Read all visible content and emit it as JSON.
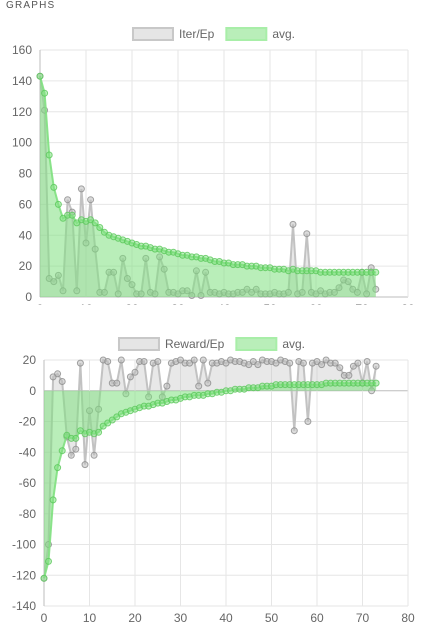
{
  "header": {
    "title": "GRAPHS"
  },
  "chart_data": [
    {
      "type": "line",
      "x": [
        0,
        1,
        2,
        3,
        4,
        5,
        6,
        7,
        8,
        9,
        10,
        11,
        12,
        13,
        14,
        15,
        16,
        17,
        18,
        19,
        20,
        21,
        22,
        23,
        24,
        25,
        26,
        27,
        28,
        29,
        30,
        31,
        32,
        33,
        34,
        35,
        36,
        37,
        38,
        39,
        40,
        41,
        42,
        43,
        44,
        45,
        46,
        47,
        48,
        49,
        50,
        51,
        52,
        53,
        54,
        55,
        56,
        57,
        58,
        59,
        60,
        61,
        62,
        63,
        64,
        65,
        66,
        67,
        68,
        69,
        70,
        71,
        72,
        73
      ],
      "series": [
        {
          "name": "Iter/Ep",
          "color": "#bdbdbd",
          "values": [
            143,
            121,
            12,
            10,
            14,
            4,
            63,
            55,
            4,
            70,
            35,
            63,
            31,
            3,
            3,
            16,
            16,
            2,
            25,
            12,
            8,
            2,
            2,
            25,
            3,
            2,
            26,
            18,
            3,
            3,
            2,
            4,
            4,
            1,
            17,
            1,
            16,
            3,
            3,
            2,
            3,
            2,
            2,
            3,
            3,
            5,
            3,
            5,
            2,
            2,
            2,
            3,
            2,
            2,
            3,
            47,
            2,
            3,
            41,
            3,
            2,
            4,
            2,
            3,
            3,
            6,
            11,
            10,
            5,
            3,
            16,
            2,
            19,
            5
          ]
        },
        {
          "name": "avg.",
          "color": "#7fe07f",
          "values": [
            143,
            132,
            92,
            71,
            60,
            51,
            53,
            53,
            48,
            50,
            49,
            50,
            48,
            45,
            42,
            40,
            39,
            38,
            37,
            36,
            35,
            34,
            33,
            33,
            32,
            31,
            31,
            30,
            29,
            29,
            28,
            27,
            27,
            26,
            26,
            25,
            25,
            24,
            23,
            23,
            22,
            22,
            21,
            21,
            21,
            20,
            20,
            20,
            19,
            19,
            19,
            18,
            18,
            18,
            17,
            18,
            17,
            17,
            17,
            17,
            17,
            16,
            16,
            16,
            16,
            16,
            16,
            16,
            16,
            16,
            16,
            16,
            16,
            16
          ]
        }
      ],
      "xlim": [
        0,
        80
      ],
      "ylim": [
        0,
        160
      ],
      "xticks": [
        0,
        10,
        20,
        30,
        40,
        50,
        60,
        70,
        80
      ],
      "yticks": [
        0,
        20,
        40,
        60,
        80,
        100,
        120,
        140,
        160
      ],
      "legend": "top-center",
      "grid": true
    },
    {
      "type": "line",
      "x": [
        0,
        1,
        2,
        3,
        4,
        5,
        6,
        7,
        8,
        9,
        10,
        11,
        12,
        13,
        14,
        15,
        16,
        17,
        18,
        19,
        20,
        21,
        22,
        23,
        24,
        25,
        26,
        27,
        28,
        29,
        30,
        31,
        32,
        33,
        34,
        35,
        36,
        37,
        38,
        39,
        40,
        41,
        42,
        43,
        44,
        45,
        46,
        47,
        48,
        49,
        50,
        51,
        52,
        53,
        54,
        55,
        56,
        57,
        58,
        59,
        60,
        61,
        62,
        63,
        64,
        65,
        66,
        67,
        68,
        69,
        70,
        71,
        72,
        73
      ],
      "series": [
        {
          "name": "Reward/Ep",
          "color": "#bdbdbd",
          "values": [
            -122,
            -100,
            9,
            11,
            6,
            -30,
            -42,
            -38,
            18,
            -48,
            -13,
            -42,
            -12,
            20,
            19,
            5,
            5,
            20,
            -2,
            9,
            12,
            19,
            19,
            -4,
            18,
            19,
            -4,
            3,
            18,
            19,
            20,
            18,
            18,
            20,
            3,
            20,
            5,
            18,
            18,
            19,
            18,
            20,
            19,
            19,
            18,
            17,
            19,
            17,
            20,
            19,
            19,
            18,
            20,
            19,
            18,
            -26,
            19,
            18,
            -20,
            18,
            19,
            17,
            20,
            18,
            18,
            15,
            10,
            10,
            16,
            18,
            5,
            19,
            0,
            16
          ]
        },
        {
          "name": "avg.",
          "color": "#7fe07f",
          "values": [
            -122,
            -111,
            -71,
            -50,
            -39,
            -29,
            -31,
            -31,
            -26,
            -28,
            -27,
            -28,
            -27,
            -23,
            -21,
            -19,
            -17,
            -15,
            -14,
            -13,
            -12,
            -11,
            -10,
            -10,
            -9,
            -8,
            -8,
            -7,
            -6,
            -6,
            -5,
            -4,
            -4,
            -3,
            -3,
            -3,
            -2,
            -2,
            -1,
            -1,
            0,
            0,
            1,
            1,
            1,
            2,
            2,
            2,
            3,
            3,
            3,
            4,
            4,
            4,
            4,
            4,
            4,
            4,
            4,
            4,
            4,
            4,
            5,
            5,
            5,
            5,
            5,
            5,
            5,
            5,
            5,
            5,
            5,
            5
          ]
        }
      ],
      "xlim": [
        0,
        80
      ],
      "ylim": [
        -140,
        20
      ],
      "xticks": [
        0,
        10,
        20,
        30,
        40,
        50,
        60,
        70,
        80
      ],
      "yticks": [
        -140,
        -120,
        -100,
        -80,
        -60,
        -40,
        -20,
        0,
        20
      ],
      "legend": "top-center",
      "grid": true
    }
  ]
}
